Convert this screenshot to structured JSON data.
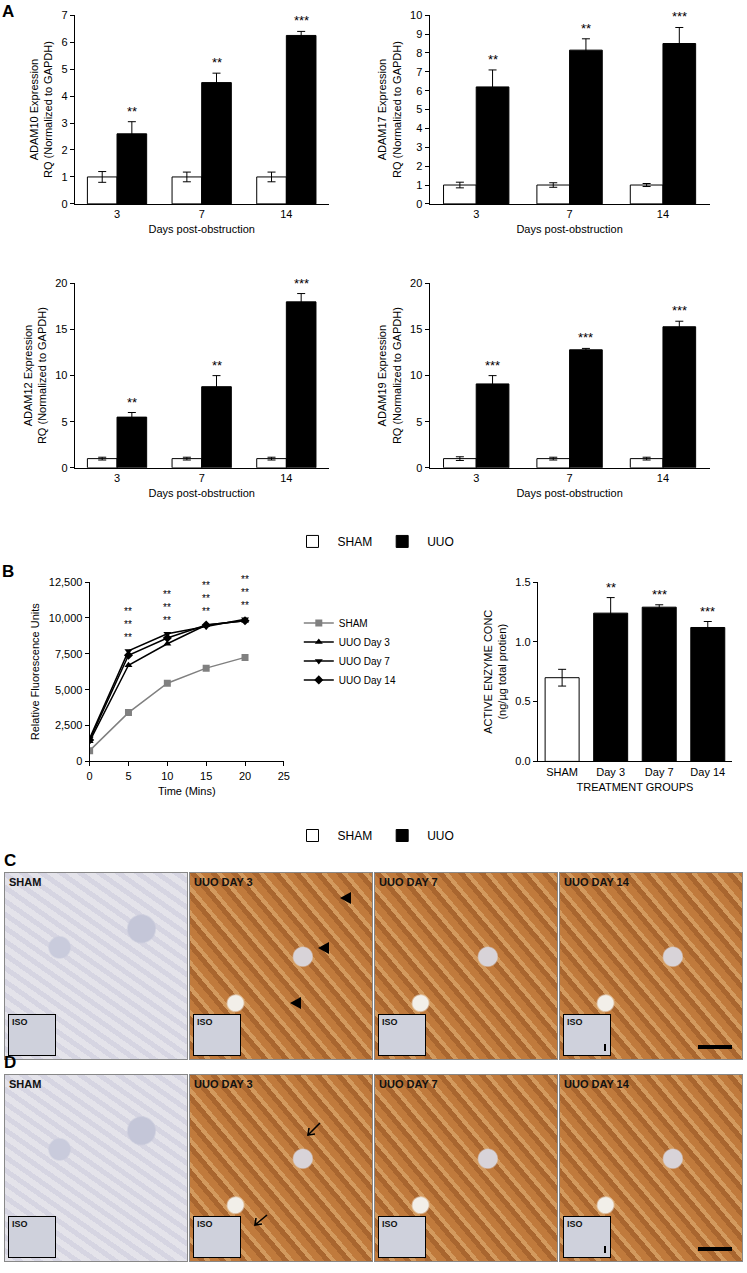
{
  "chart_data": [
    {
      "type": "bar",
      "panel": "A",
      "categories": [
        "3",
        "7",
        "14"
      ],
      "xlabel": "Days post-obstruction",
      "ylabel": [
        "ADAM10 Expression",
        "RQ (Normalized to GAPDH)"
      ],
      "ylim": [
        0,
        7
      ],
      "yticks": [
        0,
        1,
        2,
        3,
        4,
        5,
        6,
        7
      ],
      "legend": "bottom",
      "series": [
        {
          "name": "SHAM",
          "color": "#ffffff",
          "values": [
            1,
            1,
            1
          ],
          "errors": [
            0.2,
            0.18,
            0.18
          ]
        },
        {
          "name": "UUO",
          "color": "#000000",
          "values": [
            2.6,
            4.5,
            6.25
          ],
          "errors": [
            0.45,
            0.35,
            0.15
          ]
        }
      ],
      "significance": [
        "**",
        "**",
        "***"
      ]
    },
    {
      "type": "bar",
      "categories": [
        "3",
        "7",
        "14"
      ],
      "xlabel": "Days post-obstruction",
      "ylabel": [
        "ADAM17 Expression",
        "RQ (Normalized to GAPDH)"
      ],
      "ylim": [
        0,
        10
      ],
      "yticks": [
        0,
        1,
        2,
        3,
        4,
        5,
        6,
        7,
        8,
        9,
        10
      ],
      "series": [
        {
          "name": "SHAM",
          "color": "#ffffff",
          "values": [
            1,
            1,
            1
          ],
          "errors": [
            0.15,
            0.12,
            0.08
          ]
        },
        {
          "name": "UUO",
          "color": "#000000",
          "values": [
            6.2,
            8.15,
            8.5
          ],
          "errors": [
            0.9,
            0.6,
            0.85
          ]
        }
      ],
      "significance": [
        "**",
        "**",
        "***"
      ]
    },
    {
      "type": "bar",
      "categories": [
        "3",
        "7",
        "14"
      ],
      "xlabel": "Days post-obstruction",
      "ylabel": [
        "ADAM12 Expression",
        "RQ (Normalized to GAPDH)"
      ],
      "ylim": [
        0,
        20
      ],
      "yticks": [
        0,
        5,
        10,
        15,
        20
      ],
      "series": [
        {
          "name": "SHAM",
          "color": "#ffffff",
          "values": [
            1,
            1,
            1
          ],
          "errors": [
            0.15,
            0.15,
            0.15
          ]
        },
        {
          "name": "UUO",
          "color": "#000000",
          "values": [
            5.5,
            8.8,
            18
          ],
          "errors": [
            0.5,
            1.2,
            0.9
          ]
        }
      ],
      "significance": [
        "**",
        "**",
        "***"
      ]
    },
    {
      "type": "bar",
      "categories": [
        "3",
        "7",
        "14"
      ],
      "xlabel": "Days post-obstruction",
      "ylabel": [
        "ADAM19 Expression",
        "RQ (Normalized to GAPDH)"
      ],
      "ylim": [
        0,
        20
      ],
      "yticks": [
        0,
        5,
        10,
        15,
        20
      ],
      "series": [
        {
          "name": "SHAM",
          "color": "#ffffff",
          "values": [
            1,
            1,
            1
          ],
          "errors": [
            0.2,
            0.15,
            0.15
          ]
        },
        {
          "name": "UUO",
          "color": "#000000",
          "values": [
            9.1,
            12.8,
            15.3
          ],
          "errors": [
            0.9,
            0.15,
            0.6
          ]
        }
      ],
      "significance": [
        "***",
        "***",
        "***"
      ]
    },
    {
      "type": "line",
      "panel": "B",
      "x": [
        0,
        5,
        10,
        15,
        20
      ],
      "xlabel": "Time (Mins)",
      "ylabel": [
        "Relative Fluorescence Units"
      ],
      "xlim": [
        0,
        25
      ],
      "xticks": [
        0,
        5,
        10,
        15,
        20,
        25
      ],
      "ylim": [
        0,
        12500
      ],
      "yticks": [
        0,
        {
          "value": 2500,
          "label": "2,500"
        },
        {
          "value": 5000,
          "label": "5,000"
        },
        {
          "value": 7500,
          "label": "7,500"
        },
        {
          "value": 10000,
          "label": "10,000"
        },
        {
          "value": 12500,
          "label": "12,500"
        }
      ],
      "legend": "right",
      "series": [
        {
          "name": "SHAM",
          "color": "#808080",
          "marker": "square",
          "values": [
            750,
            3400,
            5450,
            6500,
            7250
          ]
        },
        {
          "name": "UUO Day 3",
          "color": "#000000",
          "marker": "triangle-up",
          "values": [
            1400,
            6700,
            8200,
            9500,
            9800
          ]
        },
        {
          "name": "UUO Day 7",
          "color": "#000000",
          "marker": "triangle-down",
          "values": [
            1600,
            7700,
            8900,
            9400,
            9900
          ]
        },
        {
          "name": "UUO Day 14",
          "color": "#000000",
          "marker": "diamond",
          "values": [
            1500,
            7400,
            8600,
            9500,
            9800
          ]
        }
      ],
      "significance": [
        {
          "x": 5,
          "labels": [
            "**",
            "**",
            "**"
          ]
        },
        {
          "x": 10,
          "labels": [
            "**",
            "**",
            "**"
          ]
        },
        {
          "x": 15,
          "labels": [
            "**",
            "**",
            "**"
          ]
        },
        {
          "x": 20,
          "labels": [
            "**",
            "**",
            "**"
          ]
        }
      ]
    },
    {
      "type": "bar",
      "categories": [
        "SHAM",
        "Day 3",
        "Day 7",
        "Day 14"
      ],
      "xlabel": "TREATMENT GROUPS",
      "ylabel": [
        "ACTIVE ENZYME CONC",
        "(ng/µg total protien)"
      ],
      "ylim": [
        0,
        1.5
      ],
      "yticks": [
        {
          "value": 0,
          "label": "0.0"
        },
        {
          "value": 0.5,
          "label": "0.5"
        },
        {
          "value": 1,
          "label": "1.0"
        },
        {
          "value": 1.5,
          "label": "1.5"
        }
      ],
      "legend": "bottom",
      "series": [
        {
          "name": "SHAM",
          "color": "#ffffff",
          "values": [
            0.7,
            null,
            null,
            null
          ],
          "errors": [
            0.07,
            null,
            null,
            null
          ]
        },
        {
          "name": "UUO",
          "color": "#000000",
          "values": [
            null,
            1.24,
            1.29,
            1.12
          ],
          "errors": [
            null,
            0.13,
            0.02,
            0.05
          ]
        }
      ],
      "significance": [
        null,
        "**",
        "***",
        "***"
      ]
    }
  ],
  "panels": [
    {
      "label": "C",
      "images": [
        {
          "title": "SHAM",
          "inset": "ISO"
        },
        {
          "title": "UUO DAY 3",
          "inset": "ISO"
        },
        {
          "title": "UUO DAY 7",
          "inset": "ISO"
        },
        {
          "title": "UUO DAY 14",
          "inset": "ISO"
        }
      ]
    },
    {
      "label": "D",
      "images": [
        {
          "title": "SHAM",
          "inset": "ISO"
        },
        {
          "title": "UUO DAY 3",
          "inset": "ISO"
        },
        {
          "title": "UUO DAY 7",
          "inset": "ISO"
        },
        {
          "title": "UUO DAY 14",
          "inset": "ISO"
        }
      ]
    }
  ]
}
